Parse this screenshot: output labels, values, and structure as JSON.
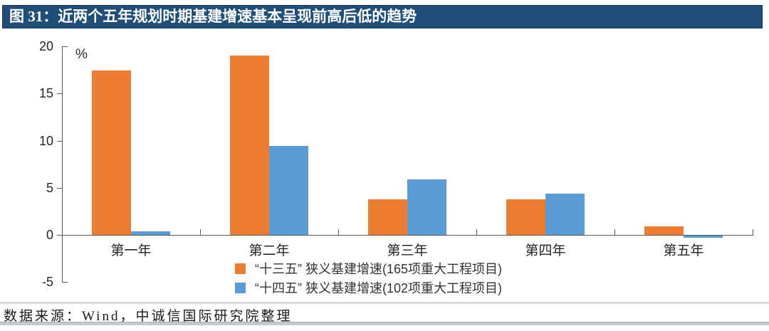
{
  "header": {
    "title": "图 31：近两个五年规划时期基建增速基本呈现前高后低的趋势",
    "bg_color": "#1F4E79",
    "text_color": "#FFFFFF"
  },
  "chart_data": {
    "type": "bar",
    "title": "",
    "unit_label": "%",
    "categories": [
      "第一年",
      "第二年",
      "第三年",
      "第四年",
      "第五年"
    ],
    "series": [
      {
        "name": "“十三五” 狭义基建增速(165项重大工程项目)",
        "color": "#ED7D31",
        "values": [
          17.4,
          19.0,
          3.8,
          3.8,
          0.9
        ]
      },
      {
        "name": "“十四五” 狭义基建增速(102项重大工程项目)",
        "color": "#5B9BD5",
        "values": [
          0.4,
          9.4,
          5.9,
          4.4,
          -0.2
        ]
      }
    ],
    "ylim": [
      -5,
      20
    ],
    "yticks": [
      20,
      15,
      10,
      5,
      0,
      -5
    ],
    "grid": false,
    "legend_position": "bottom-center",
    "axis_color": "#595959"
  },
  "footer": {
    "source_text": "数据来源：Wind，中诚信国际研究院整理"
  }
}
